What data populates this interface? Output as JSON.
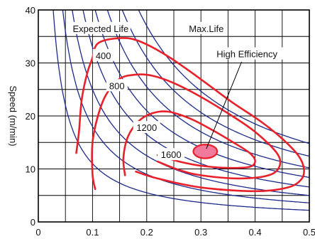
{
  "chart_data": {
    "type": "line",
    "title": "",
    "xlabel": "",
    "ylabel": "Speed (m/min)",
    "xlim": [
      0,
      0.5
    ],
    "ylim": [
      0,
      40
    ],
    "x_ticks": [
      "0",
      "0.1",
      "0.2",
      "0.3",
      "0.4",
      "0.5"
    ],
    "y_ticks": [
      "0",
      "10",
      "20",
      "30",
      "40"
    ],
    "grid": true,
    "annotations": {
      "expected_life": "Expected Life",
      "max_life": "Max.Life",
      "high_efficiency": "High Efficiency"
    },
    "life_curve_constants": [
      1.1,
      1.8,
      2.5,
      3.3,
      4.2,
      5.1,
      6.2,
      7.4
    ],
    "life_contours": [
      {
        "label": "400",
        "points": [
          [
            0.07,
            13
          ],
          [
            0.075,
            17
          ],
          [
            0.08,
            23
          ],
          [
            0.09,
            28
          ],
          [
            0.1,
            31
          ],
          [
            0.105,
            33
          ],
          [
            0.115,
            34
          ],
          [
            0.14,
            34.6
          ],
          [
            0.17,
            34.6
          ],
          [
            0.2,
            33.5
          ],
          [
            0.24,
            31.2
          ],
          [
            0.28,
            28.4
          ],
          [
            0.32,
            25.4
          ],
          [
            0.36,
            22.4
          ],
          [
            0.41,
            19
          ],
          [
            0.45,
            15.7
          ],
          [
            0.48,
            12.5
          ],
          [
            0.49,
            10
          ],
          [
            0.485,
            8
          ],
          [
            0.46,
            6.5
          ],
          [
            0.4,
            5.8
          ],
          [
            0.3,
            6.5
          ],
          [
            0.22,
            8.2
          ],
          [
            0.18,
            9.5
          ]
        ]
      },
      {
        "label": "800",
        "points": [
          [
            0.105,
            6.2
          ],
          [
            0.1,
            9
          ],
          [
            0.1,
            15
          ],
          [
            0.11,
            20
          ],
          [
            0.125,
            24
          ],
          [
            0.15,
            27
          ],
          [
            0.18,
            27.8
          ],
          [
            0.21,
            27.6
          ],
          [
            0.25,
            26.2
          ],
          [
            0.3,
            23.6
          ],
          [
            0.35,
            20.5
          ],
          [
            0.4,
            17
          ],
          [
            0.44,
            13
          ],
          [
            0.445,
            10.5
          ],
          [
            0.425,
            8.8
          ],
          [
            0.37,
            8.2
          ],
          [
            0.3,
            8.8
          ],
          [
            0.26,
            9.8
          ],
          [
            0.22,
            11.4
          ]
        ]
      },
      {
        "label": "1200",
        "points": [
          [
            0.16,
            8.8
          ],
          [
            0.157,
            12
          ],
          [
            0.165,
            16
          ],
          [
            0.185,
            19
          ],
          [
            0.21,
            20.5
          ],
          [
            0.24,
            20.8
          ],
          [
            0.28,
            19.5
          ],
          [
            0.32,
            17.4
          ],
          [
            0.36,
            15
          ],
          [
            0.39,
            13
          ],
          [
            0.4,
            11.5
          ],
          [
            0.39,
            10.4
          ],
          [
            0.35,
            10.2
          ],
          [
            0.3,
            10.6
          ],
          [
            0.26,
            11.4
          ],
          [
            0.22,
            12.6
          ]
        ]
      }
    ],
    "high_efficiency_region": {
      "label": "1600",
      "center": [
        0.308,
        13.3
      ],
      "rx": 0.022,
      "ry": 1.3
    }
  }
}
